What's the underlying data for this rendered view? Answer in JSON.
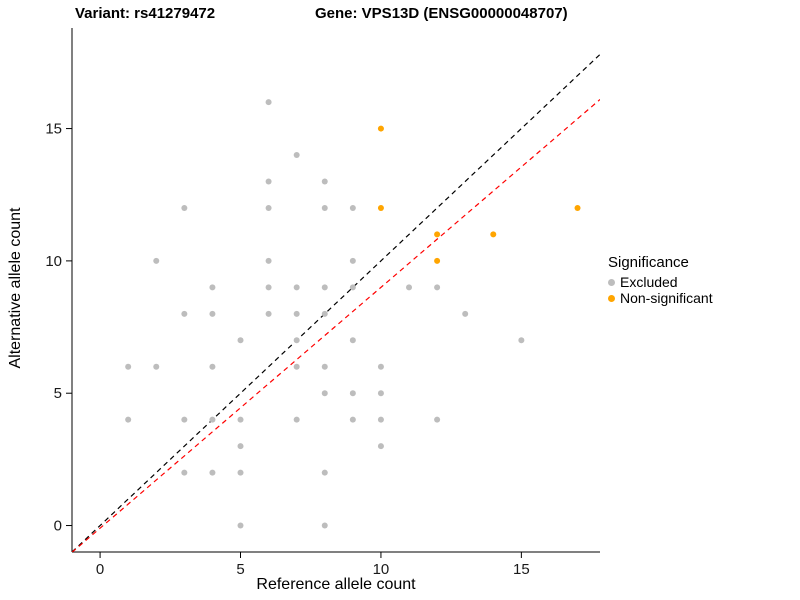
{
  "titles": {
    "left": "Variant: rs41279472",
    "right": "Gene: VPS13D (ENSG00000048707)"
  },
  "chart_data": {
    "type": "scatter",
    "xlabel": "Reference allele count",
    "ylabel": "Alternative allele count",
    "xlim": [
      -1,
      17.8
    ],
    "ylim": [
      -1,
      18.8
    ],
    "xticks": [
      0,
      5,
      10,
      15
    ],
    "yticks": [
      0,
      5,
      10,
      15
    ],
    "grid": false,
    "legend": {
      "title": "Significance",
      "position": "right",
      "entries": [
        {
          "label": "Excluded",
          "color": "#bdbdbd"
        },
        {
          "label": "Non-significant",
          "color": "#FFA500"
        }
      ]
    },
    "series": [
      {
        "name": "Excluded",
        "color": "#bdbdbd",
        "points": [
          [
            6,
            16
          ],
          [
            7,
            14
          ],
          [
            6,
            13
          ],
          [
            8,
            13
          ],
          [
            3,
            12
          ],
          [
            6,
            12
          ],
          [
            8,
            12
          ],
          [
            9,
            12
          ],
          [
            2,
            10
          ],
          [
            6,
            10
          ],
          [
            9,
            10
          ],
          [
            4,
            9
          ],
          [
            6,
            9
          ],
          [
            7,
            9
          ],
          [
            8,
            9
          ],
          [
            9,
            9
          ],
          [
            11,
            9
          ],
          [
            12,
            9
          ],
          [
            3,
            8
          ],
          [
            4,
            8
          ],
          [
            6,
            8
          ],
          [
            7,
            8
          ],
          [
            8,
            8
          ],
          [
            13,
            8
          ],
          [
            5,
            7
          ],
          [
            7,
            7
          ],
          [
            9,
            7
          ],
          [
            15,
            7
          ],
          [
            1,
            6
          ],
          [
            2,
            6
          ],
          [
            4,
            6
          ],
          [
            7,
            6
          ],
          [
            8,
            6
          ],
          [
            10,
            6
          ],
          [
            8,
            5
          ],
          [
            9,
            5
          ],
          [
            10,
            5
          ],
          [
            1,
            4
          ],
          [
            3,
            4
          ],
          [
            4,
            4
          ],
          [
            5,
            4
          ],
          [
            7,
            4
          ],
          [
            9,
            4
          ],
          [
            10,
            4
          ],
          [
            12,
            4
          ],
          [
            5,
            3
          ],
          [
            10,
            3
          ],
          [
            3,
            2
          ],
          [
            4,
            2
          ],
          [
            5,
            2
          ],
          [
            8,
            2
          ],
          [
            5,
            0
          ],
          [
            8,
            0
          ]
        ]
      },
      {
        "name": "Non-significant",
        "color": "#FFA500",
        "points": [
          [
            10,
            15
          ],
          [
            10,
            12
          ],
          [
            12,
            11
          ],
          [
            12,
            10
          ],
          [
            14,
            11
          ],
          [
            17,
            12
          ]
        ]
      }
    ],
    "lines": [
      {
        "name": "identity",
        "color": "#000000",
        "dash": "5,4",
        "slope": 1,
        "intercept": 0
      },
      {
        "name": "fit",
        "color": "#ff0000",
        "dash": "5,4",
        "slope": 0.91,
        "intercept": -0.1
      }
    ]
  }
}
